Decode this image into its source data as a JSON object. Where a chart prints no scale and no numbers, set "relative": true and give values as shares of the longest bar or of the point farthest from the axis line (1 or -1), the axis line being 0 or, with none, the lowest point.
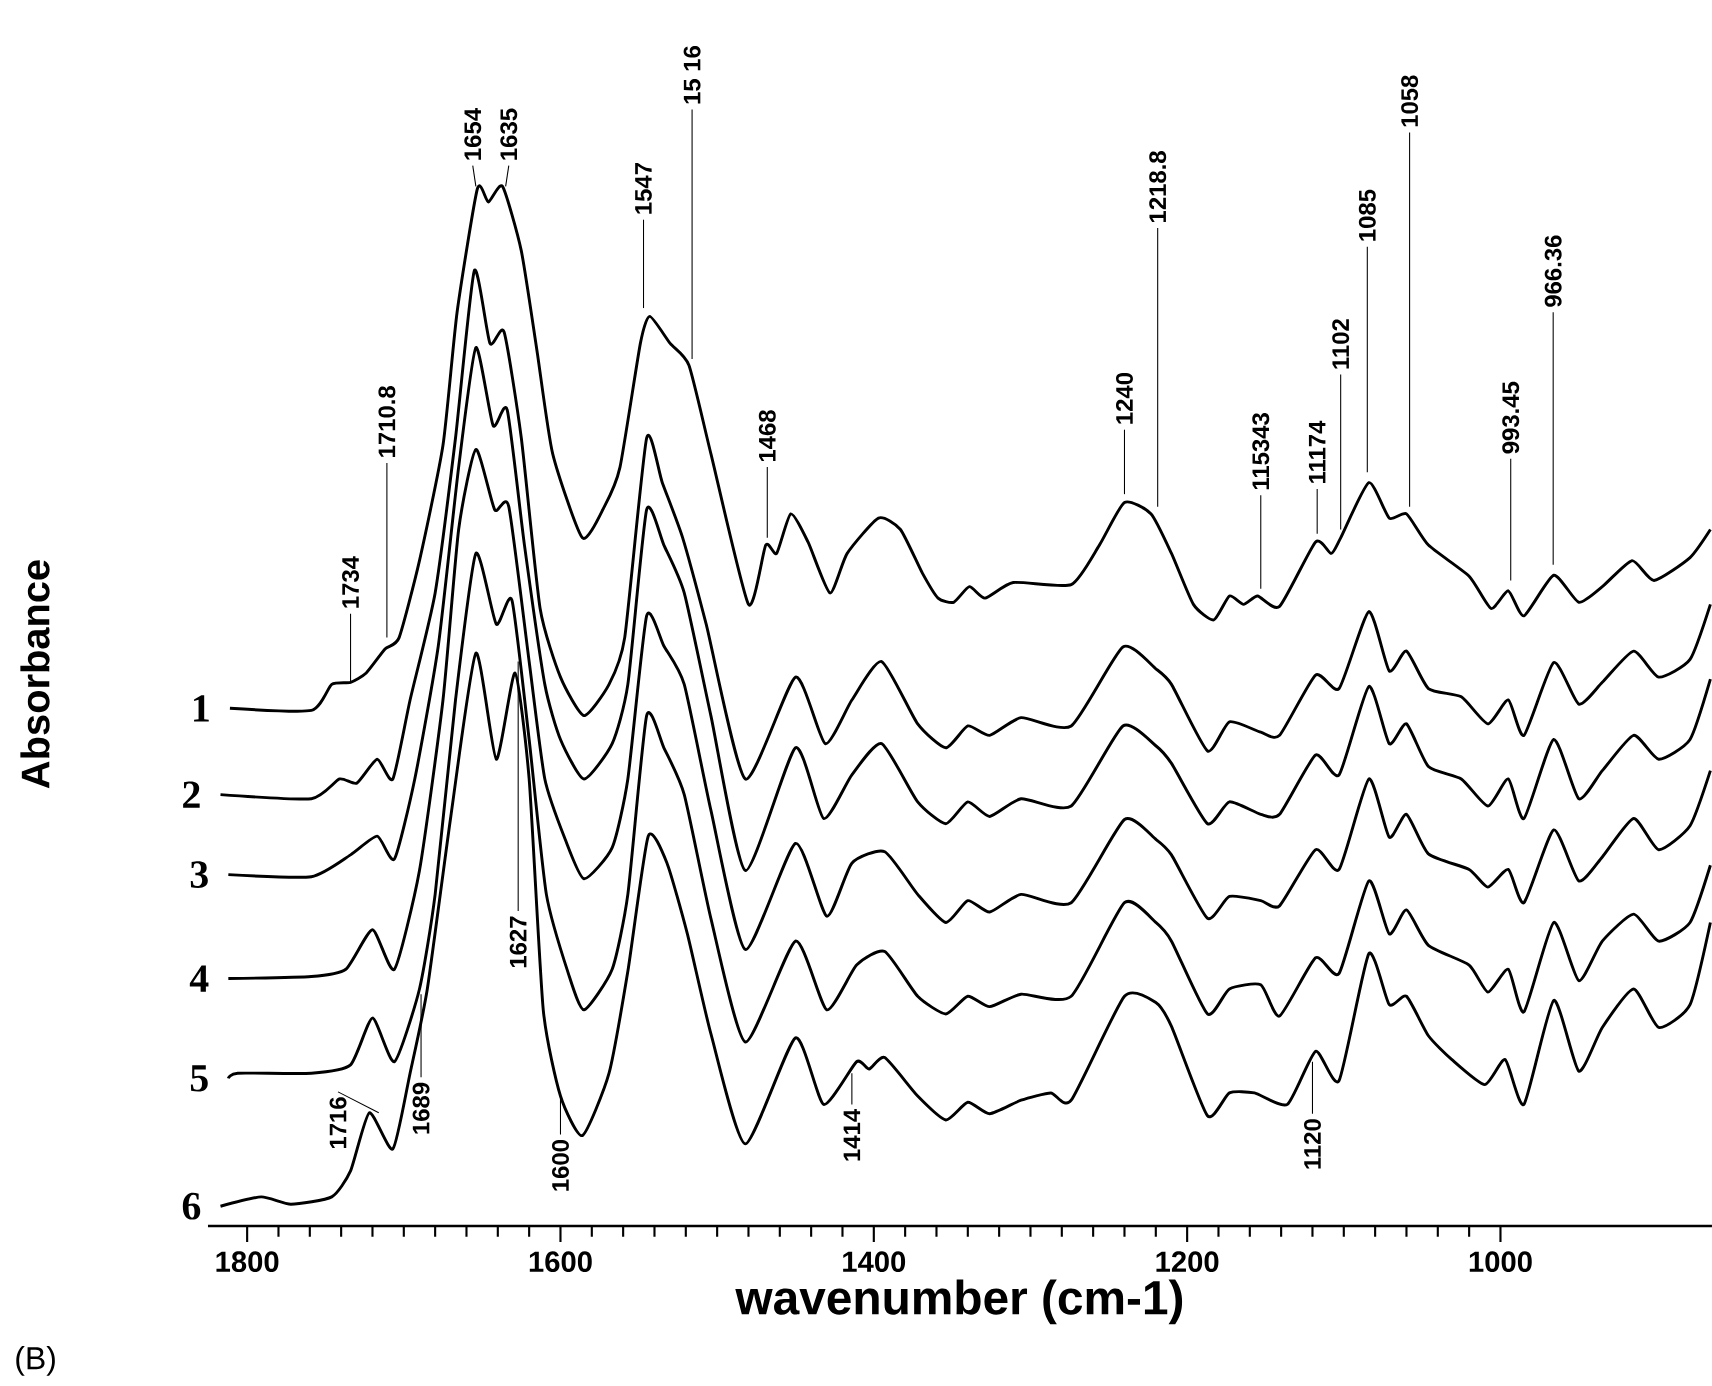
{
  "chart_data": {
    "type": "line",
    "relative": true,
    "xlabel": "wavenumber (cm-1)",
    "ylabel": "Absorbance",
    "xlim": [
      1825,
      865
    ],
    "xticks": [
      1800,
      1600,
      1400,
      1200,
      1000
    ],
    "series": [
      {
        "name": "1",
        "color": "#000000",
        "x": [
          1811,
          1759,
          1746,
          1734,
          1724,
          1712,
          1703,
          1690,
          1675,
          1666,
          1653,
          1646,
          1637,
          1625,
          1615,
          1605,
          1586,
          1572,
          1562,
          1549,
          1543,
          1530,
          1518,
          1504,
          1480,
          1469,
          1462,
          1453,
          1442,
          1428,
          1417,
          1397,
          1383,
          1369,
          1359,
          1349,
          1339,
          1329,
          1311,
          1274,
          1256,
          1240,
          1223,
          1210,
          1196,
          1183,
          1173,
          1164,
          1155,
          1141,
          1118,
          1108,
          1102,
          1084,
          1071,
          1060,
          1046,
          1020,
          1006,
          995,
          985,
          966,
          950,
          935,
          916,
          902,
          879,
          866
        ],
        "values": [
          0.498,
          0.496,
          0.521,
          0.523,
          0.532,
          0.555,
          0.566,
          0.64,
          0.751,
          0.879,
          0.998,
          0.985,
          1.0,
          0.938,
          0.842,
          0.743,
          0.662,
          0.692,
          0.73,
          0.849,
          0.875,
          0.849,
          0.828,
          0.743,
          0.598,
          0.655,
          0.647,
          0.685,
          0.658,
          0.609,
          0.647,
          0.681,
          0.67,
          0.628,
          0.604,
          0.6,
          0.615,
          0.604,
          0.619,
          0.617,
          0.655,
          0.696,
          0.685,
          0.647,
          0.598,
          0.583,
          0.606,
          0.598,
          0.606,
          0.596,
          0.658,
          0.647,
          0.662,
          0.715,
          0.681,
          0.685,
          0.655,
          0.625,
          0.594,
          0.611,
          0.587,
          0.626,
          0.6,
          0.615,
          0.64,
          0.621,
          0.643,
          0.67
        ]
      },
      {
        "name": "2",
        "color": "#000000",
        "x": [
          1817,
          1759,
          1741,
          1730,
          1717,
          1707,
          1696,
          1680,
          1667,
          1655,
          1645,
          1636,
          1625,
          1613,
          1600,
          1585,
          1569,
          1559,
          1545,
          1535,
          1522,
          1507,
          1482,
          1450,
          1431,
          1414,
          1395,
          1372,
          1354,
          1340,
          1326,
          1306,
          1274,
          1241,
          1220,
          1210,
          1187,
          1173,
          1153,
          1141,
          1118,
          1103,
          1084,
          1071,
          1060,
          1046,
          1025,
          1008,
          995,
          985,
          966,
          950,
          935,
          915,
          899,
          879,
          866
        ],
        "values": [
          0.415,
          0.411,
          0.43,
          0.426,
          0.449,
          0.43,
          0.506,
          0.609,
          0.758,
          0.919,
          0.849,
          0.86,
          0.758,
          0.594,
          0.528,
          0.491,
          0.521,
          0.566,
          0.758,
          0.715,
          0.662,
          0.579,
          0.43,
          0.528,
          0.464,
          0.506,
          0.543,
          0.483,
          0.46,
          0.481,
          0.472,
          0.489,
          0.481,
          0.557,
          0.536,
          0.521,
          0.457,
          0.485,
          0.475,
          0.472,
          0.53,
          0.517,
          0.591,
          0.534,
          0.553,
          0.517,
          0.509,
          0.483,
          0.506,
          0.472,
          0.542,
          0.502,
          0.523,
          0.553,
          0.528,
          0.545,
          0.598
        ]
      },
      {
        "name": "3",
        "color": "#000000",
        "x": [
          1812,
          1759,
          1734,
          1717,
          1706,
          1693,
          1678,
          1665,
          1654,
          1643,
          1634,
          1623,
          1610,
          1600,
          1585,
          1567,
          1557,
          1545,
          1534,
          1521,
          1504,
          1482,
          1450,
          1432,
          1414,
          1395,
          1372,
          1354,
          1340,
          1326,
          1306,
          1274,
          1241,
          1220,
          1210,
          1187,
          1173,
          1153,
          1141,
          1118,
          1103,
          1084,
          1071,
          1060,
          1046,
          1025,
          1008,
          995,
          985,
          966,
          950,
          935,
          915,
          899,
          879,
          866
        ],
        "values": [
          0.338,
          0.336,
          0.357,
          0.375,
          0.353,
          0.43,
          0.558,
          0.73,
          0.845,
          0.77,
          0.785,
          0.655,
          0.521,
          0.468,
          0.43,
          0.464,
          0.521,
          0.689,
          0.655,
          0.609,
          0.491,
          0.342,
          0.46,
          0.392,
          0.434,
          0.464,
          0.408,
          0.387,
          0.408,
          0.394,
          0.411,
          0.404,
          0.481,
          0.462,
          0.445,
          0.387,
          0.408,
          0.396,
          0.396,
          0.453,
          0.434,
          0.519,
          0.464,
          0.483,
          0.442,
          0.43,
          0.404,
          0.43,
          0.392,
          0.468,
          0.411,
          0.438,
          0.472,
          0.449,
          0.468,
          0.526
        ]
      },
      {
        "name": "4",
        "color": "#000000",
        "x": [
          1812,
          1759,
          1737,
          1720,
          1706,
          1690,
          1675,
          1665,
          1654,
          1642,
          1633,
          1620,
          1610,
          1597,
          1585,
          1567,
          1557,
          1545,
          1534,
          1521,
          1504,
          1482,
          1450,
          1430,
          1414,
          1393,
          1372,
          1354,
          1340,
          1326,
          1306,
          1274,
          1240,
          1220,
          1210,
          1187,
          1173,
          1153,
          1141,
          1118,
          1103,
          1084,
          1071,
          1060,
          1046,
          1020,
          1008,
          995,
          985,
          966,
          950,
          935,
          915,
          899,
          879,
          866
        ],
        "values": [
          0.238,
          0.24,
          0.247,
          0.285,
          0.247,
          0.342,
          0.506,
          0.67,
          0.747,
          0.689,
          0.692,
          0.543,
          0.43,
          0.372,
          0.334,
          0.364,
          0.43,
          0.587,
          0.558,
          0.521,
          0.4,
          0.266,
          0.368,
          0.298,
          0.349,
          0.36,
          0.319,
          0.292,
          0.313,
          0.302,
          0.319,
          0.311,
          0.391,
          0.372,
          0.357,
          0.296,
          0.317,
          0.313,
          0.308,
          0.362,
          0.343,
          0.43,
          0.374,
          0.396,
          0.358,
          0.343,
          0.326,
          0.343,
          0.311,
          0.381,
          0.332,
          0.355,
          0.392,
          0.362,
          0.385,
          0.438
        ]
      },
      {
        "name": "5",
        "color": "#000000",
        "x": [
          1812,
          1806,
          1759,
          1734,
          1720,
          1706,
          1690,
          1680,
          1667,
          1654,
          1641,
          1631,
          1620,
          1609,
          1595,
          1585,
          1567,
          1557,
          1545,
          1534,
          1521,
          1504,
          1482,
          1450,
          1430,
          1411,
          1393,
          1372,
          1354,
          1340,
          1326,
          1306,
          1274,
          1240,
          1220,
          1210,
          1187,
          1173,
          1153,
          1141,
          1118,
          1103,
          1084,
          1071,
          1060,
          1046,
          1020,
          1008,
          995,
          985,
          966,
          950,
          935,
          915,
          899,
          879,
          866
        ],
        "values": [
          0.142,
          0.147,
          0.147,
          0.155,
          0.2,
          0.158,
          0.228,
          0.319,
          0.506,
          0.647,
          0.579,
          0.602,
          0.468,
          0.319,
          0.243,
          0.208,
          0.247,
          0.319,
          0.491,
          0.46,
          0.415,
          0.296,
          0.177,
          0.274,
          0.208,
          0.251,
          0.264,
          0.221,
          0.204,
          0.221,
          0.211,
          0.223,
          0.221,
          0.311,
          0.292,
          0.274,
          0.204,
          0.228,
          0.232,
          0.202,
          0.258,
          0.243,
          0.332,
          0.281,
          0.304,
          0.27,
          0.251,
          0.225,
          0.247,
          0.206,
          0.292,
          0.236,
          0.274,
          0.3,
          0.274,
          0.292,
          0.347
        ]
      },
      {
        "name": "6",
        "color": "#000000",
        "x": [
          1817,
          1791,
          1772,
          1746,
          1734,
          1722,
          1707,
          1696,
          1685,
          1670,
          1654,
          1641,
          1629,
          1620,
          1611,
          1600,
          1586,
          1569,
          1557,
          1544,
          1532,
          1519,
          1504,
          1482,
          1450,
          1432,
          1411,
          1403,
          1393,
          1372,
          1354,
          1340,
          1326,
          1306,
          1287,
          1274,
          1240,
          1220,
          1210,
          1187,
          1173,
          1157,
          1136,
          1118,
          1103,
          1084,
          1071,
          1060,
          1046,
          1031,
          1010,
          997,
          985,
          966,
          950,
          935,
          915,
          899,
          879,
          866
        ],
        "values": [
          0.019,
          0.028,
          0.021,
          0.028,
          0.053,
          0.109,
          0.074,
          0.147,
          0.228,
          0.394,
          0.551,
          0.449,
          0.532,
          0.43,
          0.208,
          0.125,
          0.087,
          0.147,
          0.245,
          0.375,
          0.349,
          0.281,
          0.185,
          0.079,
          0.181,
          0.117,
          0.158,
          0.151,
          0.162,
          0.125,
          0.102,
          0.119,
          0.108,
          0.121,
          0.128,
          0.121,
          0.221,
          0.215,
          0.192,
          0.106,
          0.128,
          0.128,
          0.117,
          0.168,
          0.14,
          0.262,
          0.213,
          0.221,
          0.183,
          0.16,
          0.136,
          0.16,
          0.117,
          0.217,
          0.149,
          0.191,
          0.228,
          0.191,
          0.213,
          0.292
        ]
      }
    ],
    "annotations": [
      {
        "text": "1734",
        "x": 1734,
        "y": 0.523
      },
      {
        "text": "1710.8",
        "x": 1710.8,
        "y": 0.566
      },
      {
        "text": "1654",
        "x": 1654,
        "y": 1.0
      },
      {
        "text": "1635",
        "x": 1635,
        "y": 1.0
      },
      {
        "text": "1547",
        "x": 1547,
        "y": 0.883
      },
      {
        "text": "15 16",
        "x": 1516,
        "y": 0.834
      },
      {
        "text": "1468",
        "x": 1468,
        "y": 0.662
      },
      {
        "text": "1240",
        "x": 1240,
        "y": 0.704
      },
      {
        "text": "1218.8",
        "x": 1218.8,
        "y": 0.692
      },
      {
        "text": "115343",
        "x": 1153,
        "y": 0.613
      },
      {
        "text": "11174",
        "x": 1117,
        "y": 0.666
      },
      {
        "text": "1102",
        "x": 1102,
        "y": 0.67
      },
      {
        "text": "1085",
        "x": 1085,
        "y": 0.725
      },
      {
        "text": "1058",
        "x": 1058,
        "y": 0.692
      },
      {
        "text": "993.45",
        "x": 993.45,
        "y": 0.621
      },
      {
        "text": "966.36",
        "x": 966.36,
        "y": 0.636
      },
      {
        "text": "1627",
        "x": 1627,
        "y": 0.543
      },
      {
        "text": "1716",
        "x": 1716,
        "y": 0.109
      },
      {
        "text": "1689",
        "x": 1689,
        "y": 0.223
      },
      {
        "text": "1600",
        "x": 1600,
        "y": 0.128
      },
      {
        "text": "1414",
        "x": 1414,
        "y": 0.147
      },
      {
        "text": "1120",
        "x": 1120,
        "y": 0.158
      },
      "(B)"
    ]
  }
}
